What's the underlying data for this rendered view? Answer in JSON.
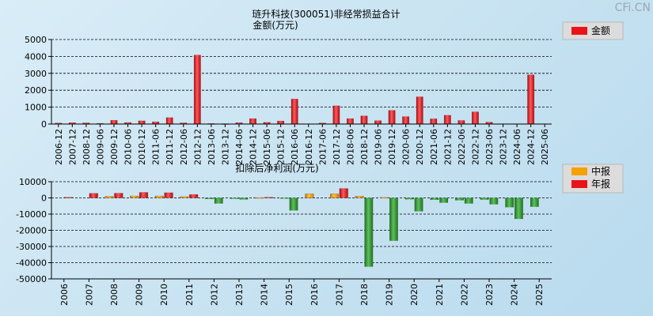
{
  "watermark": "CFi.CN",
  "charts": [
    {
      "title": "琏升科技(300051)非经常损益合计",
      "subtitle": "金额(万元)",
      "legend": [
        {
          "label": "金额",
          "color": "#e8141a"
        }
      ]
    },
    {
      "title": "扣除后净利润(万元)",
      "legend": [
        {
          "label": "中报",
          "color": "#f5a100"
        },
        {
          "label": "年报",
          "color": "#e8141a"
        }
      ]
    }
  ],
  "chart_data": [
    {
      "type": "bar",
      "title": "琏升科技(300051)非经常损益合计",
      "ylabel": "金额(万元)",
      "ylim": [
        0,
        5000
      ],
      "yticks": [
        0,
        1000,
        2000,
        3000,
        4000,
        5000
      ],
      "grid": true,
      "legend_position": "top-right",
      "categories": [
        "2006-12",
        "2007-12",
        "2008-12",
        "2009-06",
        "2009-12",
        "2010-06",
        "2010-12",
        "2011-06",
        "2011-12",
        "2012-06",
        "2012-12",
        "2013-06",
        "2013-12",
        "2014-06",
        "2014-12",
        "2015-06",
        "2015-12",
        "2016-06",
        "2016-12",
        "2017-06",
        "2017-12",
        "2018-06",
        "2018-12",
        "2019-06",
        "2019-12",
        "2020-06",
        "2020-12",
        "2021-06",
        "2021-12",
        "2022-06",
        "2022-12",
        "2023-06",
        "2023-12",
        "2024-06",
        "2024-12",
        "2025-06"
      ],
      "series": [
        {
          "name": "金额",
          "color": "#e8141a",
          "values": [
            60,
            80,
            70,
            40,
            220,
            90,
            190,
            130,
            380,
            70,
            4080,
            30,
            20,
            80,
            320,
            100,
            180,
            1480,
            0,
            60,
            1080,
            320,
            480,
            200,
            810,
            440,
            1610,
            310,
            520,
            210,
            720,
            110,
            0,
            0,
            2910,
            0
          ]
        }
      ]
    },
    {
      "type": "bar",
      "title": "扣除后净利润(万元)",
      "ylim": [
        -50000,
        10000
      ],
      "yticks": [
        -50000,
        -40000,
        -30000,
        -20000,
        -10000,
        0,
        10000
      ],
      "grid": true,
      "legend_position": "top-right",
      "categories": [
        "2006",
        "2007",
        "2008",
        "2009",
        "2010",
        "2011",
        "2012",
        "2013",
        "2014",
        "2015",
        "2016",
        "2017",
        "2018",
        "2019",
        "2020",
        "2021",
        "2022",
        "2023",
        "2024",
        "2025"
      ],
      "series": [
        {
          "name": "中报",
          "color": "#f5a100",
          "neg_color": "#2e8b2e",
          "values": [
            null,
            null,
            1000,
            1200,
            1200,
            800,
            -700,
            -600,
            200,
            -400,
            2500,
            2500,
            1100,
            300,
            -900,
            -1200,
            -1500,
            -1100,
            -5800,
            -5500
          ]
        },
        {
          "name": "年报",
          "color": "#e8141a",
          "neg_color": "#2e8b2e",
          "values": [
            400,
            2800,
            2900,
            3400,
            3200,
            2100,
            -3500,
            -1000,
            400,
            -7800,
            null,
            5800,
            -42500,
            -26500,
            -8300,
            -3000,
            -3500,
            -4000,
            -13000,
            null
          ]
        }
      ]
    }
  ]
}
